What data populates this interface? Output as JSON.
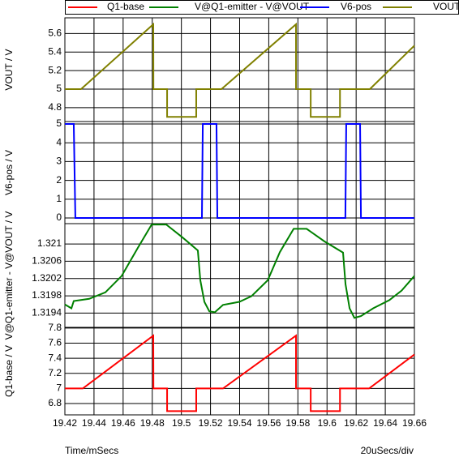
{
  "chart_data": [
    {
      "type": "line",
      "ylabel": "VOUT / V",
      "ylim": [
        4.65,
        5.77
      ],
      "yticks": [
        5.6,
        5.4,
        5.2,
        5,
        4.8
      ],
      "grid": true,
      "series": [
        {
          "name": "VOUT",
          "color": "#808000",
          "x": [
            19.42,
            19.4311,
            19.4807,
            19.4808,
            19.4902,
            19.4902,
            19.5102,
            19.5102,
            19.5275,
            19.5787,
            19.5787,
            19.5888,
            19.5888,
            19.6089,
            19.6089,
            19.6294,
            19.66
          ],
          "values": [
            5.0,
            5.0,
            5.7,
            5.0,
            5.0,
            4.7,
            4.7,
            5.0,
            5.0,
            5.7,
            5.0,
            5.0,
            4.7,
            4.7,
            5.0,
            5.0,
            5.47
          ]
        }
      ]
    },
    {
      "type": "line",
      "ylabel": "V6-pos / V",
      "ylim": [
        -0.3,
        5.13
      ],
      "yticks": [
        5,
        4,
        3,
        2,
        1,
        0
      ],
      "grid": true,
      "series": [
        {
          "name": "V6-pos",
          "color": "#0000ff",
          "x": [
            19.42,
            19.4261,
            19.4272,
            19.5141,
            19.5147,
            19.5241,
            19.5247,
            19.6126,
            19.6132,
            19.6227,
            19.6233,
            19.66
          ],
          "values": [
            5,
            5,
            0,
            0,
            5,
            5,
            0,
            0,
            5,
            5,
            0,
            0
          ]
        }
      ]
    },
    {
      "type": "line",
      "ylabel": "V@Q1-emitter - V@VOUT / V",
      "ylim": [
        1.31907,
        1.32147
      ],
      "yticks": [
        1.321,
        1.3206,
        1.3202,
        1.3198,
        1.3194
      ],
      "grid": true,
      "series": [
        {
          "name": "V@Q1-emitter - V@VOUT",
          "color": "#008000",
          "x": [
            19.42,
            19.4245,
            19.4261,
            19.4367,
            19.4478,
            19.459,
            19.4701,
            19.4796,
            19.4896,
            19.5008,
            19.5113,
            19.513,
            19.5158,
            19.5192,
            19.523,
            19.5286,
            19.5398,
            19.5481,
            19.5593,
            19.5676,
            19.5771,
            19.586,
            19.5982,
            19.611,
            19.6127,
            19.6155,
            19.6188,
            19.6233,
            19.6317,
            19.6428,
            19.6512,
            19.66
          ],
          "values": [
            1.3196,
            1.31951,
            1.31968,
            1.31973,
            1.31988,
            1.32026,
            1.32091,
            1.32145,
            1.32145,
            1.32115,
            1.32085,
            1.32016,
            1.31966,
            1.31944,
            1.31942,
            1.31959,
            1.31966,
            1.31979,
            1.32016,
            1.32081,
            1.32135,
            1.32135,
            1.32106,
            1.3208,
            1.32007,
            1.31951,
            1.31929,
            1.31933,
            1.31951,
            1.3197,
            1.31992,
            1.32026
          ]
        }
      ]
    },
    {
      "type": "line",
      "ylabel": "Q1-base / V",
      "ylim": [
        6.65,
        7.81
      ],
      "yticks": [
        7.8,
        7.6,
        7.4,
        7.2,
        7,
        6.8
      ],
      "grid": true,
      "xlabel": "Time/mSecs",
      "annotation": "20uSecs/div",
      "xlim": [
        19.42,
        19.66
      ],
      "xticks": [
        19.42,
        19.44,
        19.46,
        19.48,
        19.5,
        19.52,
        19.54,
        19.56,
        19.58,
        19.6,
        19.62,
        19.64,
        19.66
      ],
      "series": [
        {
          "name": "Q1-base",
          "color": "#ff0000",
          "x": [
            19.42,
            19.4323,
            19.4807,
            19.4808,
            19.4902,
            19.4902,
            19.5102,
            19.5102,
            19.5286,
            19.5787,
            19.5787,
            19.5888,
            19.5888,
            19.6089,
            19.6089,
            19.6289,
            19.66
          ],
          "values": [
            7.0,
            7.0,
            7.7,
            7.0,
            7.0,
            6.7,
            6.7,
            7.0,
            7.0,
            7.7,
            7.0,
            7.0,
            6.7,
            6.7,
            7.0,
            7.0,
            7.45
          ]
        }
      ]
    }
  ]
}
